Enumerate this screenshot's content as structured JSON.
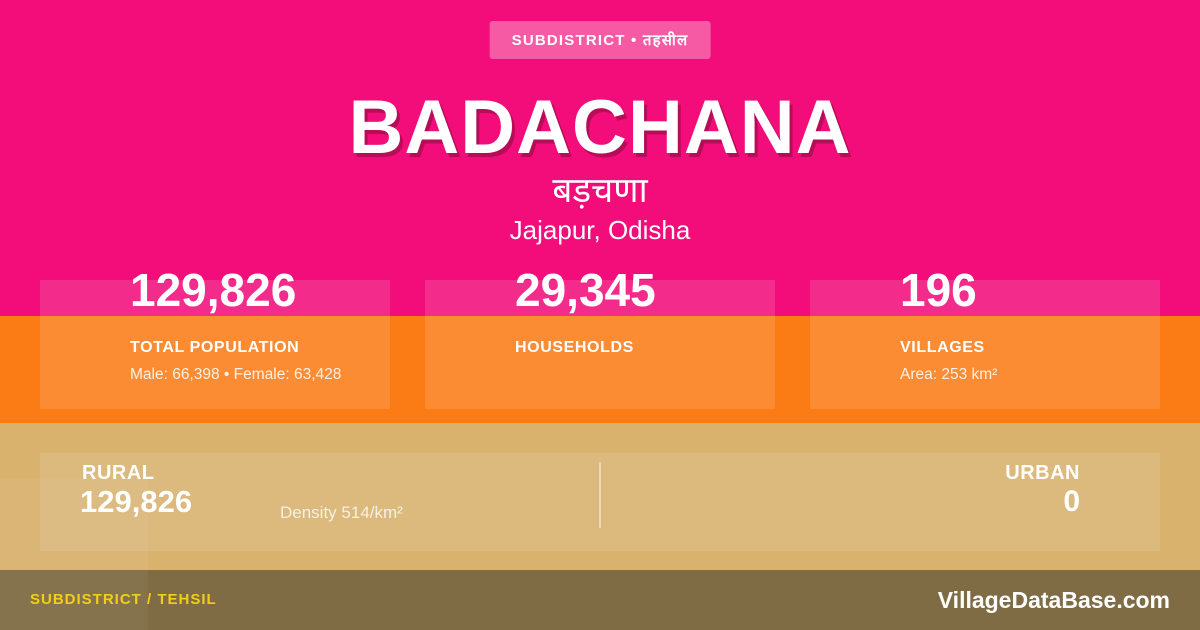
{
  "card": {
    "badge": "SUBDISTRICT • तहसील",
    "title": "BADACHANA",
    "native_name": "बड़चणा",
    "location": "Jajapur, Odisha"
  },
  "stats": [
    {
      "value": "129,826",
      "label": "TOTAL POPULATION",
      "detail": "Male: 66,398 • Female: 63,428"
    },
    {
      "value": "29,345",
      "label": "HOUSEHOLDS"
    },
    {
      "value": "196",
      "label": "VILLAGES",
      "detail": "Area: 253 km²"
    }
  ],
  "breakdown": {
    "rural_label": "RURAL",
    "rural_value": "129,826",
    "density": "Density 514/km²",
    "urban_label": "URBAN",
    "urban_value": "0"
  },
  "footer": {
    "type_label": "SUBDISTRICT / TEHSIL",
    "site": "VillageDataBase.com"
  },
  "colors": {
    "pink": "#F20D7A",
    "orange": "#FB7B15",
    "tan": "#D9B26E",
    "olive": "#7F6C45",
    "yellow": "#F2CE19"
  }
}
